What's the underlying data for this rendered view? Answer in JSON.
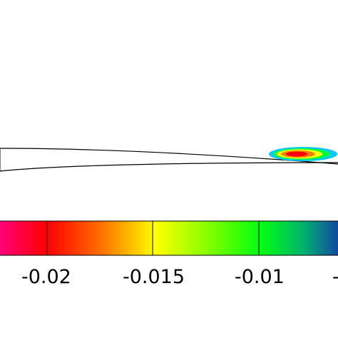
{
  "colorbar": {
    "colors": [
      "#ff0080",
      "#ff0000",
      "#ff8000",
      "#ffff00",
      "#80ff00",
      "#00ff00",
      "#00a0a0",
      "#1040a0"
    ],
    "tick_labels": [
      "-0.02",
      "-0.015",
      "-0.01",
      "-"
    ]
  },
  "contour": {
    "colors": [
      "#00c8ff",
      "#00ff00",
      "#ffff00",
      "#ff8000",
      "#ff0000"
    ]
  },
  "outline_color": "#000000"
}
